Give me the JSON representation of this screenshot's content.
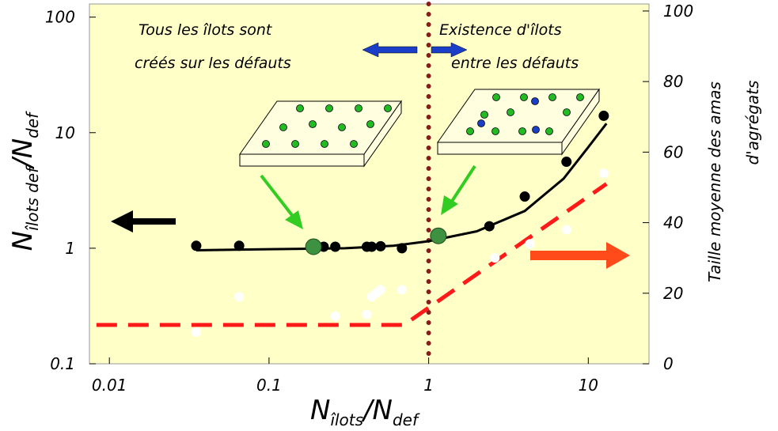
{
  "chart_data": {
    "type": "scatter",
    "xscale": "log",
    "yscale": "log",
    "xlim": [
      0.0075,
      24
    ],
    "ylim": [
      0.1,
      130
    ],
    "y2lim": [
      0,
      102
    ],
    "xticks": [
      0.01,
      0.1,
      1,
      10
    ],
    "yticks": [
      0.1,
      1,
      10,
      100
    ],
    "y2ticks": [
      0,
      20,
      40,
      60,
      80,
      100
    ],
    "x_label": [
      "N",
      "îlots",
      "/N",
      "def"
    ],
    "y_label": [
      "N",
      "îlots def",
      "/N",
      "def"
    ],
    "y2_label": [
      "Taille moyenne des amas",
      "d'agrégats"
    ],
    "annotations": [
      "Tous les îlots sont",
      "créés sur les défauts",
      "Existence d'îlots",
      "entre  les défauts"
    ],
    "reference_x": 1,
    "reference_color": "#8b1a1a",
    "background": "#ffffc8",
    "series": [
      {
        "kind": "points",
        "color": "#000000",
        "x": [
          0.035,
          0.065,
          0.22,
          0.26,
          0.41,
          0.44,
          0.5,
          0.68,
          2.4,
          4.0,
          7.3,
          12.5
        ],
        "values": [
          1.05,
          1.05,
          1.03,
          1.03,
          1.03,
          1.03,
          1.04,
          1.0,
          1.55,
          2.8,
          5.6,
          14
        ]
      },
      {
        "kind": "big-points",
        "color": "#3d9140",
        "x": [
          0.19,
          1.15
        ],
        "values": [
          1.03,
          1.28
        ]
      },
      {
        "kind": "points",
        "axis": "y2",
        "color": "#ffffff",
        "x": [
          0.035,
          0.065,
          0.26,
          0.41,
          0.44,
          0.47,
          0.5,
          0.68,
          2.6,
          4.3,
          7.3,
          12.5
        ],
        "values": [
          9,
          19,
          13.5,
          14,
          19,
          20,
          21,
          21,
          30,
          34,
          38,
          54
        ]
      },
      {
        "kind": "line",
        "color": "#000000",
        "x": [
          0.035,
          0.1,
          0.3,
          0.6,
          1,
          2,
          4,
          7,
          10,
          13
        ],
        "values": [
          0.96,
          0.98,
          1.0,
          1.05,
          1.15,
          1.4,
          2.1,
          4,
          7.5,
          12
        ]
      },
      {
        "kind": "dashed",
        "axis": "y2",
        "color": "#ff1a1a",
        "x": [
          0.0083,
          0.7,
          13
        ],
        "values": [
          11,
          11,
          51
        ]
      }
    ]
  }
}
